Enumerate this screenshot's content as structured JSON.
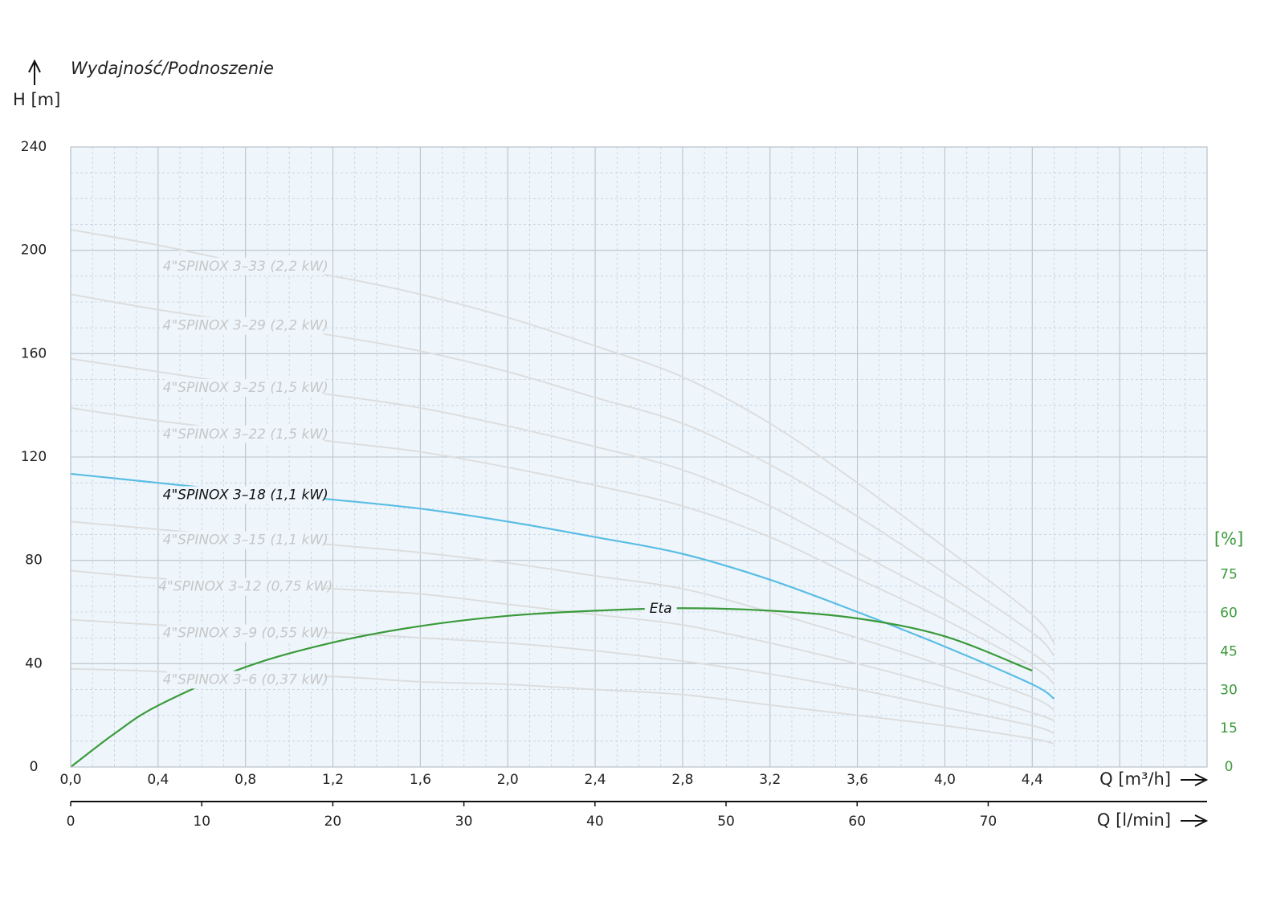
{
  "chart_data": {
    "type": "line",
    "title": "Wydajność/Podnoszenie",
    "ylabel": "H [m]",
    "xlabel": "Q [m³/h]",
    "x2label": "Q [l/min]",
    "y2label": "[%]",
    "xlim": [
      0,
      5.2
    ],
    "ylim": [
      0,
      240
    ],
    "y2lim": [
      0,
      242
    ],
    "x2lim": [
      0,
      86.7
    ],
    "xticks": [
      {
        "value": 0,
        "label": "0,0"
      },
      {
        "value": 0.4,
        "label": "0,4"
      },
      {
        "value": 0.8,
        "label": "0,8"
      },
      {
        "value": 1.2,
        "label": "1,2"
      },
      {
        "value": 1.6,
        "label": "1,6"
      },
      {
        "value": 2.0,
        "label": "2,0"
      },
      {
        "value": 2.4,
        "label": "2,4"
      },
      {
        "value": 2.8,
        "label": "2,8"
      },
      {
        "value": 3.2,
        "label": "3,2"
      },
      {
        "value": 3.6,
        "label": "3,6"
      },
      {
        "value": 4.0,
        "label": "4,0"
      },
      {
        "value": 4.4,
        "label": "4,4"
      }
    ],
    "x2ticks": [
      0,
      10,
      20,
      30,
      40,
      50,
      60,
      70
    ],
    "yticks": [
      0,
      40,
      80,
      120,
      160,
      200,
      240
    ],
    "y2ticks": [
      0,
      15,
      30,
      45,
      60,
      75
    ],
    "grid": true,
    "minor_grid": {
      "x": 0.1,
      "y": 10
    },
    "series": [
      {
        "name": "4\"SPINOX 3–33 (2,2 kW)",
        "color": "#dddddd",
        "label_color": "#c6c6c6",
        "x": [
          0,
          0.4,
          0.8,
          1.2,
          1.6,
          2.0,
          2.4,
          2.8,
          3.2,
          3.6,
          4.0,
          4.4,
          4.5
        ],
        "values": [
          208,
          202,
          195,
          190,
          183,
          174,
          163,
          151,
          133,
          110,
          85,
          59,
          48
        ]
      },
      {
        "name": "4\"SPINOX 3–29 (2,2 kW)",
        "color": "#dddddd",
        "label_color": "#c6c6c6",
        "x": [
          0,
          0.4,
          0.8,
          1.2,
          1.6,
          2.0,
          2.4,
          2.8,
          3.2,
          3.6,
          4.0,
          4.4,
          4.5
        ],
        "values": [
          183,
          177,
          172,
          167,
          161,
          153,
          143,
          133,
          117,
          97,
          75,
          52,
          43
        ]
      },
      {
        "name": "4\"SPINOX 3–25 (1,5 kW)",
        "color": "#dddddd",
        "label_color": "#c6c6c6",
        "x": [
          0,
          0.4,
          0.8,
          1.2,
          1.6,
          2.0,
          2.4,
          2.8,
          3.2,
          3.6,
          4.0,
          4.4,
          4.5
        ],
        "values": [
          158,
          153,
          148,
          144,
          139,
          132,
          124,
          115,
          101,
          83,
          65,
          44,
          37
        ]
      },
      {
        "name": "4\"SPINOX 3–22 (1,5 kW)",
        "color": "#dddddd",
        "label_color": "#c6c6c6",
        "x": [
          0,
          0.4,
          0.8,
          1.2,
          1.6,
          2.0,
          2.4,
          2.8,
          3.2,
          3.6,
          4.0,
          4.4,
          4.5
        ],
        "values": [
          139,
          134,
          130,
          126,
          122,
          116,
          109,
          101,
          89,
          73,
          57,
          39,
          32
        ]
      },
      {
        "name": "4\"SPINOX 3–18 (1,1 kW)",
        "color": "#5bbde4",
        "label_color": "#111111",
        "x": [
          0,
          0.4,
          0.8,
          1.2,
          1.6,
          2.0,
          2.4,
          2.8,
          3.2,
          3.6,
          4.0,
          4.4,
          4.5
        ],
        "values": [
          113.5,
          110,
          106.5,
          103.5,
          100,
          95,
          89,
          82.5,
          72.5,
          60,
          46.6,
          32,
          26.4
        ]
      },
      {
        "name": "4\"SPINOX 3–15 (1,1 kW)",
        "color": "#dddddd",
        "label_color": "#c6c6c6",
        "x": [
          0,
          0.4,
          0.8,
          1.2,
          1.6,
          2.0,
          2.4,
          2.8,
          3.2,
          3.6,
          4.0,
          4.4,
          4.5
        ],
        "values": [
          95,
          92,
          89,
          86,
          83,
          79,
          74,
          69,
          60,
          50,
          39,
          27,
          22
        ]
      },
      {
        "name": "4\"SPINOX 3–12 (0,75 kW)",
        "color": "#dddddd",
        "label_color": "#c6c6c6",
        "x": [
          0,
          0.4,
          0.8,
          1.2,
          1.6,
          2.0,
          2.4,
          2.8,
          3.2,
          3.6,
          4.0,
          4.4,
          4.5
        ],
        "values": [
          76,
          73,
          71,
          69,
          67,
          63,
          59,
          55,
          48,
          40,
          31,
          21,
          18
        ]
      },
      {
        "name": "4\"SPINOX 3–9 (0,55 kW)",
        "color": "#dddddd",
        "label_color": "#c6c6c6",
        "x": [
          0,
          0.4,
          0.8,
          1.2,
          1.6,
          2.0,
          2.4,
          2.8,
          3.2,
          3.6,
          4.0,
          4.4,
          4.5
        ],
        "values": [
          57,
          55,
          53,
          52,
          50,
          48,
          45,
          41,
          36,
          30,
          23,
          16,
          13
        ]
      },
      {
        "name": "4\"SPINOX 3–6 (0,37 kW)",
        "color": "#dddddd",
        "label_color": "#c6c6c6",
        "x": [
          0,
          0.4,
          0.8,
          1.2,
          1.6,
          2.0,
          2.4,
          2.8,
          3.2,
          3.6,
          4.0,
          4.4,
          4.5
        ],
        "values": [
          38,
          37,
          35,
          35,
          33,
          32,
          30,
          28,
          24,
          20,
          16,
          11,
          9
        ]
      },
      {
        "name": "Eta",
        "color": "#3a9a3a",
        "label_color": "#111111",
        "axis": "y2",
        "x": [
          0,
          0.2,
          0.4,
          0.8,
          1.2,
          1.6,
          2.0,
          2.4,
          2.8,
          3.2,
          3.6,
          4.0,
          4.4
        ],
        "values": [
          0,
          13,
          24,
          39,
          48.6,
          55,
          59,
          61,
          62,
          61,
          58,
          51,
          37.6
        ]
      }
    ]
  }
}
